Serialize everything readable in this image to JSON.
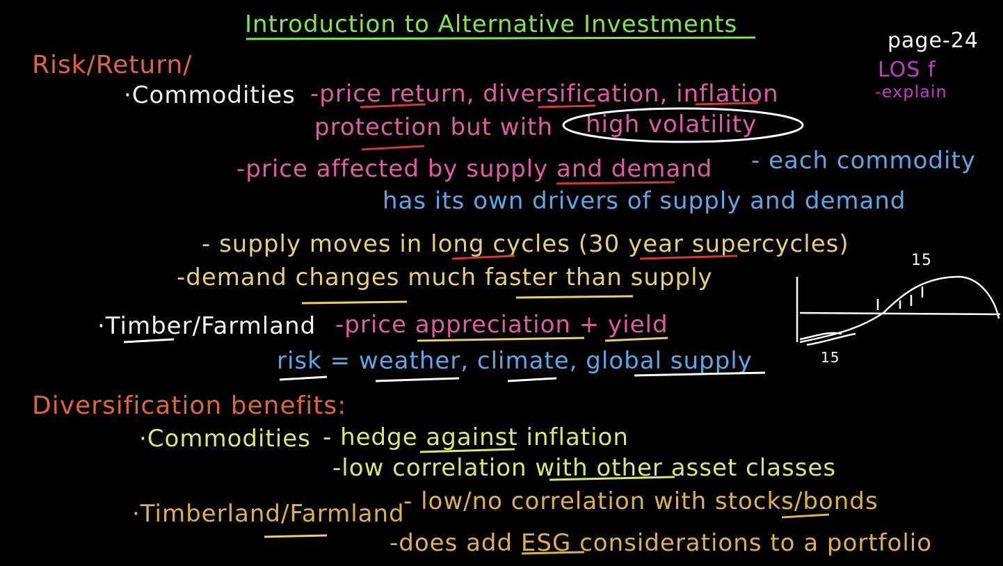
{
  "title": "Introduction to Alternative Investments",
  "page_note": "page-24",
  "los": "LOS f",
  "los_action": "-explain",
  "section1": "Risk/Return/",
  "commodities_label": "·Commodities",
  "c_line1": "-price return, diversification, inflation",
  "c_line2a": "protection but with",
  "c_line2b": "high volatility",
  "c_line3": "-price affected by supply and demand",
  "c_line3b": "- each commodity",
  "c_line4": "has its own drivers of supply and demand",
  "c_line5": "- supply moves in long cycles (30 year supercycles)",
  "c_line6": "-demand changes much faster than supply",
  "timber_label": "·Timber/Farmland",
  "t_line1": "-price appreciation + yield",
  "t_line2": "risk = weather, climate, global supply",
  "section2": "Diversification benefits:",
  "d_commodities": "·Commodities",
  "d_c1": "- hedge against inflation",
  "d_c2": "-low correlation with other asset classes",
  "d_timber": "·Timberland/Farmland",
  "d_t1": "- low/no correlation with stocks/bonds",
  "d_t2": "-does add ESG considerations to a portfolio",
  "sketch_top_label": "15",
  "sketch_bottom_label": "15"
}
